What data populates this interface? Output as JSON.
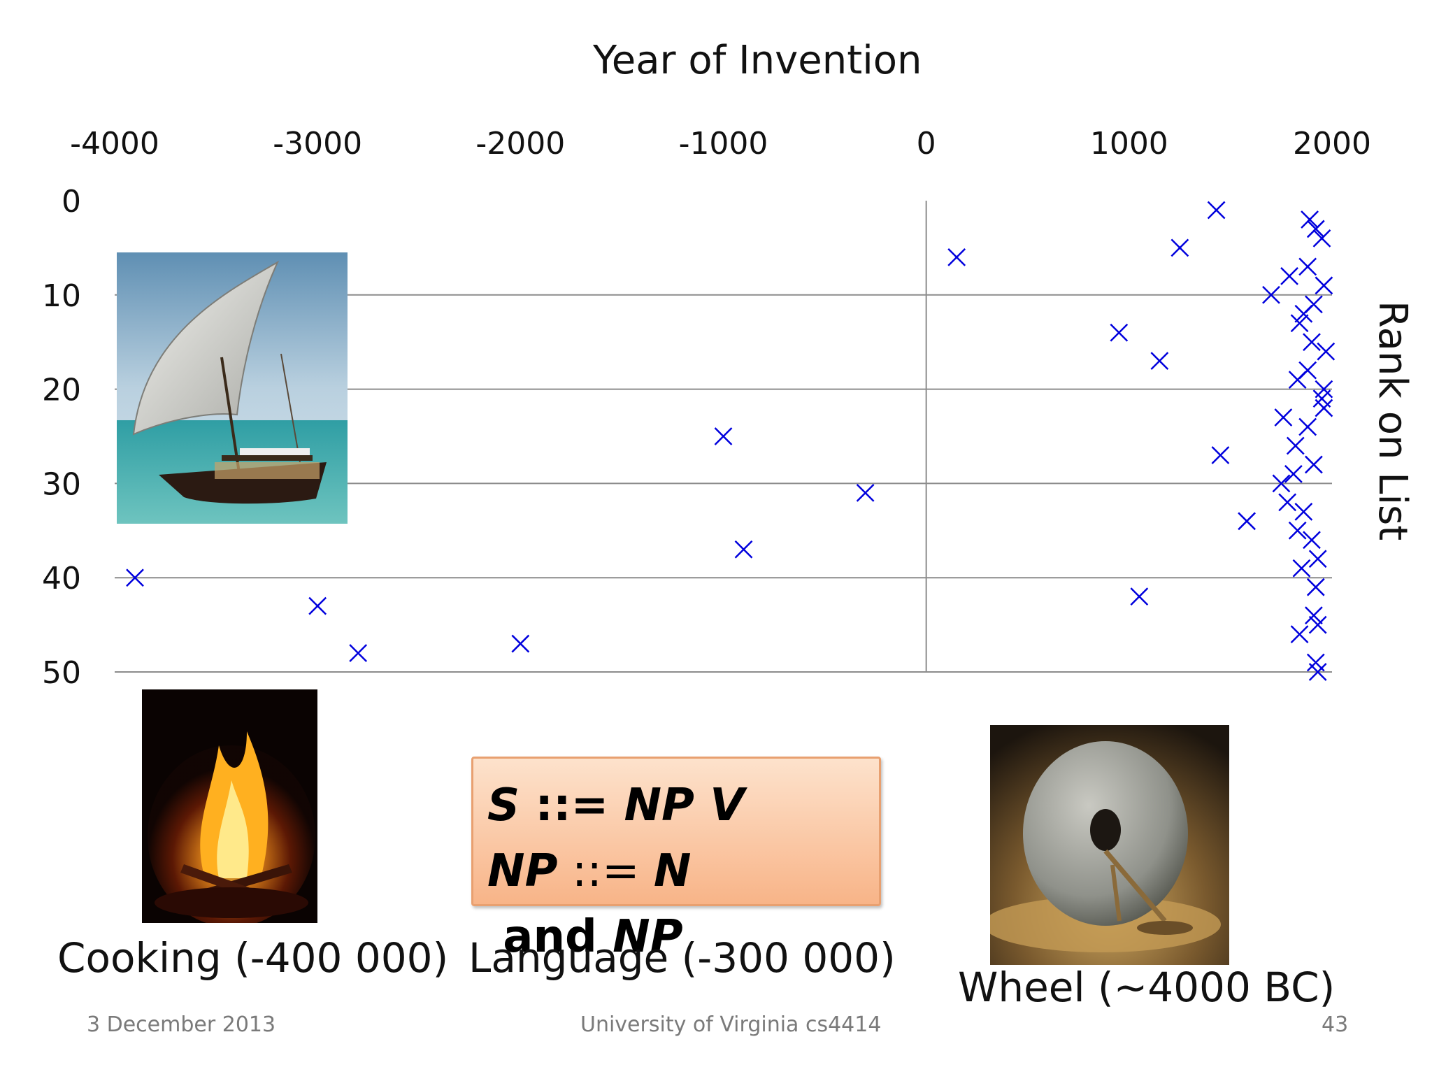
{
  "slide": {
    "footer_date": "3 December 2013",
    "footer_course": "University of Virginia cs4414",
    "page_number": "43"
  },
  "captions": {
    "cooking": "Cooking (-400 000)",
    "language": "Language (-300 000)",
    "wheel": "Wheel (~4000 BC)"
  },
  "grammar": {
    "line1": {
      "a": "S",
      "b": " ::= ",
      "c": "NP V"
    },
    "line2": {
      "a": "NP",
      "b": " ::= ",
      "c": "N",
      "d": " and ",
      "e": "NP"
    }
  },
  "images": {
    "sailboat": "sailboat photo",
    "fire": "campfire photo",
    "wheel": "stone wheel photo"
  },
  "colors": {
    "marker": "#0000dd",
    "grid": "#8c8c8c",
    "box_border": "#e8a070"
  },
  "chart_data": {
    "type": "scatter",
    "title": "Year of Invention",
    "xlabel": "Year of Invention",
    "ylabel": "Rank on List",
    "xlim": [
      -4000,
      2000
    ],
    "ylim": [
      0,
      50
    ],
    "y_reversed": true,
    "x_axis_position": "top",
    "y_axis_label_side": "right",
    "x_ticks": [
      -4000,
      -3000,
      -2000,
      -1000,
      0,
      1000,
      2000
    ],
    "x_tick_labels": [
      "-4000",
      "-3000",
      "-2000",
      "-1000",
      "0",
      "1000",
      "2000"
    ],
    "y_ticks": [
      0,
      10,
      20,
      30,
      40,
      50
    ],
    "y_tick_labels": [
      "0",
      "10",
      "20",
      "30",
      "40",
      "50"
    ],
    "grid": "horizontal",
    "marker": "x",
    "points": [
      [
        1430,
        1
      ],
      [
        150,
        6
      ],
      [
        1250,
        5
      ],
      [
        950,
        14
      ],
      [
        1150,
        17
      ],
      [
        1450,
        27
      ],
      [
        1580,
        34
      ],
      [
        1050,
        42
      ],
      [
        -1000,
        25
      ],
      [
        -300,
        31
      ],
      [
        -900,
        37
      ],
      [
        -2000,
        47
      ],
      [
        -3000,
        43
      ],
      [
        -2800,
        48
      ],
      [
        -3900,
        40
      ],
      [
        1890,
        2
      ],
      [
        1920,
        3
      ],
      [
        1950,
        4
      ],
      [
        1880,
        7
      ],
      [
        1790,
        8
      ],
      [
        1960,
        9
      ],
      [
        1700,
        10
      ],
      [
        1910,
        11
      ],
      [
        1860,
        12
      ],
      [
        1840,
        13
      ],
      [
        1900,
        15
      ],
      [
        1970,
        16
      ],
      [
        1880,
        18
      ],
      [
        1830,
        19
      ],
      [
        1960,
        20
      ],
      [
        1950,
        21
      ],
      [
        1960,
        22
      ],
      [
        1760,
        23
      ],
      [
        1880,
        24
      ],
      [
        1820,
        26
      ],
      [
        1910,
        28
      ],
      [
        1810,
        29
      ],
      [
        1750,
        30
      ],
      [
        1780,
        32
      ],
      [
        1860,
        33
      ],
      [
        1830,
        35
      ],
      [
        1900,
        36
      ],
      [
        1930,
        38
      ],
      [
        1850,
        39
      ],
      [
        1920,
        41
      ],
      [
        1910,
        44
      ],
      [
        1930,
        45
      ],
      [
        1840,
        46
      ],
      [
        1920,
        49
      ],
      [
        1930,
        50
      ]
    ]
  }
}
